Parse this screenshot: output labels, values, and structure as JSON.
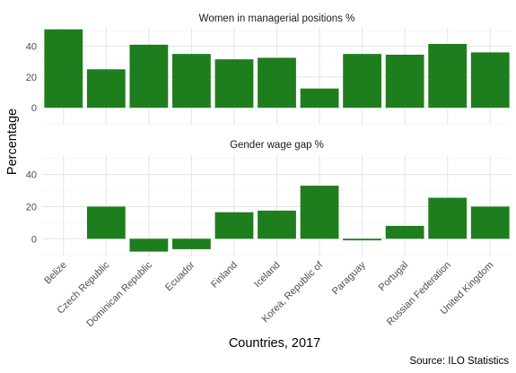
{
  "chart_data": {
    "type": "bar",
    "categories": [
      "Belize",
      "Czech Republic",
      "Dominican Republic",
      "Ecuador",
      "Finland",
      "Iceland",
      "Korea, Republic of",
      "Paraguay",
      "Portugal",
      "Russian Federation",
      "United Kingdom"
    ],
    "panels": [
      {
        "title": "Women in managerial positions %",
        "values": [
          51,
          25,
          41,
          35,
          31.5,
          32.5,
          12.5,
          35,
          34.5,
          41.5,
          36
        ]
      },
      {
        "title": "Gender wage gap %",
        "values": [
          0,
          20,
          -8,
          -6.5,
          16.5,
          17.5,
          33,
          -1,
          8,
          25.5,
          20
        ]
      }
    ],
    "ylim": [
      -11,
      52
    ],
    "yticks": [
      0,
      20,
      40
    ],
    "ylabel": "Percentage",
    "xlabel": "Countries, 2017",
    "caption": "Source: ILO Statistics",
    "bar_color": "#1e7e1e",
    "grid": true
  }
}
